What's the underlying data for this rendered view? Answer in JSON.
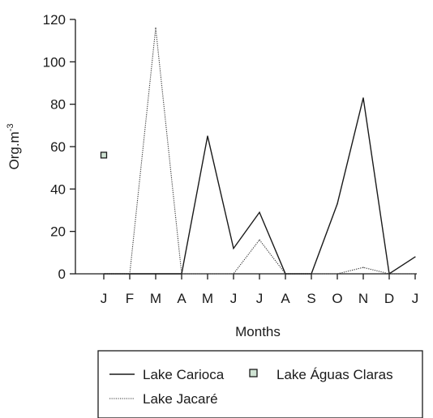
{
  "chart_data": {
    "type": "line",
    "categories": [
      "J",
      "F",
      "M",
      "A",
      "M",
      "J",
      "J",
      "A",
      "S",
      "O",
      "N",
      "D",
      "J"
    ],
    "xlabel": "Months",
    "ylabel": "Org.m",
    "ylabel_superscript": "-3",
    "ylim": [
      0,
      120
    ],
    "yticks": [
      "0",
      "20",
      "40",
      "60",
      "80",
      "100",
      "120"
    ],
    "grid": false,
    "legend_position": "bottom",
    "series": [
      {
        "name": "Lake Carioca",
        "style": "solid",
        "color": "#1a1a1a",
        "values": [
          0,
          0,
          0,
          0,
          65,
          12,
          29,
          0,
          0,
          33,
          83,
          0,
          8
        ]
      },
      {
        "name": "Lake Águas Claras",
        "style": "marker",
        "color": "#1a1a1a",
        "marker_fill": "#cfe3d3",
        "points": [
          {
            "category_index": 0,
            "value": 56
          }
        ]
      },
      {
        "name": "Lake Jacaré",
        "style": "dotted",
        "color": "#333333",
        "values": [
          0,
          0,
          116,
          0,
          0,
          0,
          16,
          0,
          0,
          0,
          3,
          0,
          0
        ]
      }
    ]
  }
}
